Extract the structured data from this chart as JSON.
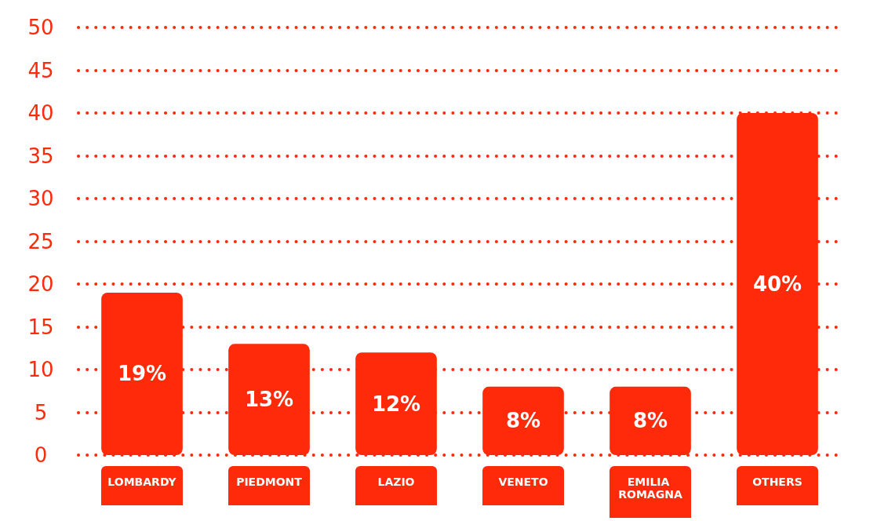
{
  "chart_data": {
    "type": "bar",
    "categories": [
      "LOMBARDY",
      "PIEDMONT",
      "LAZIO",
      "VENETO",
      "EMILIA ROMAGNA",
      "OTHERS"
    ],
    "values": [
      19,
      13,
      12,
      8,
      8,
      40
    ],
    "value_labels": [
      "19%",
      "13%",
      "12%",
      "8%",
      "8%",
      "40%"
    ],
    "color": "#ff2a0a",
    "ylim": [
      0,
      50
    ],
    "yticks": [
      0,
      5,
      10,
      15,
      20,
      25,
      30,
      35,
      40,
      45,
      50
    ],
    "grid": "y"
  }
}
